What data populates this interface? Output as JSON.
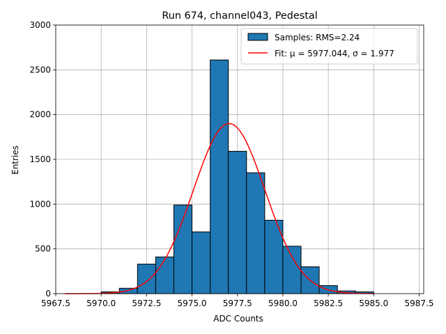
{
  "chart_data": {
    "type": "histogram",
    "title": "Run 674, channel043, Pedestal",
    "xlabel": "ADC Counts",
    "ylabel": "Entries",
    "xlim": [
      5967.5,
      5987.75
    ],
    "ylim": [
      0,
      3000
    ],
    "grid": true,
    "legend_position": "top-right",
    "x_ticks": [
      5967.5,
      5970.0,
      5972.5,
      5975.0,
      5977.5,
      5980.0,
      5982.5,
      5985.0,
      5987.5
    ],
    "x_tick_labels": [
      "5967.5",
      "5970.0",
      "5972.5",
      "5975.0",
      "5977.5",
      "5980.0",
      "5982.5",
      "5985.0",
      "5987.5"
    ],
    "y_ticks": [
      0,
      500,
      1000,
      1500,
      2000,
      2500,
      3000
    ],
    "y_tick_labels": [
      "0",
      "500",
      "1000",
      "1500",
      "2000",
      "2500",
      "3000"
    ],
    "bins": [
      {
        "x0": 5970,
        "x1": 5971,
        "count": 20
      },
      {
        "x0": 5971,
        "x1": 5972,
        "count": 60
      },
      {
        "x0": 5972,
        "x1": 5973,
        "count": 330
      },
      {
        "x0": 5973,
        "x1": 5974,
        "count": 410
      },
      {
        "x0": 5974,
        "x1": 5975,
        "count": 990
      },
      {
        "x0": 5975,
        "x1": 5976,
        "count": 690
      },
      {
        "x0": 5976,
        "x1": 5977,
        "count": 2610
      },
      {
        "x0": 5977,
        "x1": 5978,
        "count": 1590
      },
      {
        "x0": 5978,
        "x1": 5979,
        "count": 1350
      },
      {
        "x0": 5979,
        "x1": 5980,
        "count": 820
      },
      {
        "x0": 5980,
        "x1": 5981,
        "count": 530
      },
      {
        "x0": 5981,
        "x1": 5982,
        "count": 300
      },
      {
        "x0": 5982,
        "x1": 5983,
        "count": 90
      },
      {
        "x0": 5983,
        "x1": 5984,
        "count": 30
      },
      {
        "x0": 5984,
        "x1": 5985,
        "count": 20
      }
    ],
    "fit": {
      "mu": 5977.044,
      "sigma": 1.977,
      "amplitude": 1900,
      "x_range": [
        5968,
        5985
      ]
    },
    "series": [
      {
        "name": "Samples: RMS=2.24",
        "type": "bar",
        "color": "#1f77b4"
      },
      {
        "name": "Fit: μ = 5977.044, σ = 1.977",
        "type": "line",
        "color": "#ff0000"
      }
    ]
  }
}
